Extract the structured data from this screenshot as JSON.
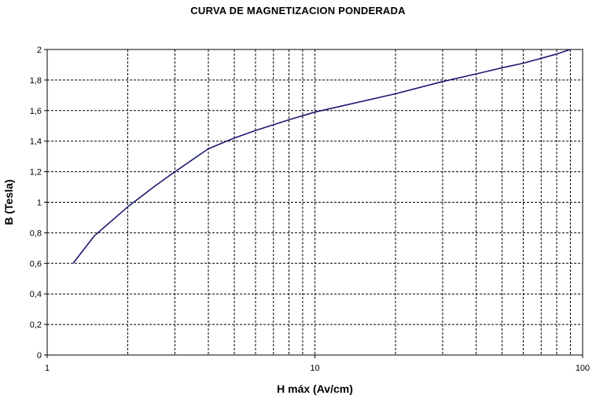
{
  "chart_data": {
    "type": "line",
    "title": "CURVA DE MAGNETIZACION PONDERADA",
    "xlabel": "H máx (Av/cm)",
    "ylabel": "B (Tesla)",
    "x_scale": "log",
    "xlim": [
      1,
      100
    ],
    "ylim": [
      0,
      2
    ],
    "grid": true,
    "x_tick_labels": [
      "1",
      "10",
      "100"
    ],
    "y_tick_labels": [
      "0",
      "0,2",
      "0,4",
      "0,6",
      "0,8",
      "1",
      "1,2",
      "1,4",
      "1,6",
      "1,8",
      "2"
    ],
    "series": [
      {
        "color": "#1a1a6e",
        "x": [
          1.25,
          1.5,
          2.0,
          2.5,
          3.0,
          4.0,
          5.0,
          6.0,
          8.0,
          10.0,
          20.0,
          30.0,
          40.0,
          50.0,
          60.0,
          80.0,
          90.0
        ],
        "y": [
          0.6,
          0.78,
          0.97,
          1.1,
          1.2,
          1.35,
          1.42,
          1.47,
          1.54,
          1.59,
          1.71,
          1.79,
          1.84,
          1.88,
          1.91,
          1.97,
          2.0
        ]
      }
    ]
  }
}
